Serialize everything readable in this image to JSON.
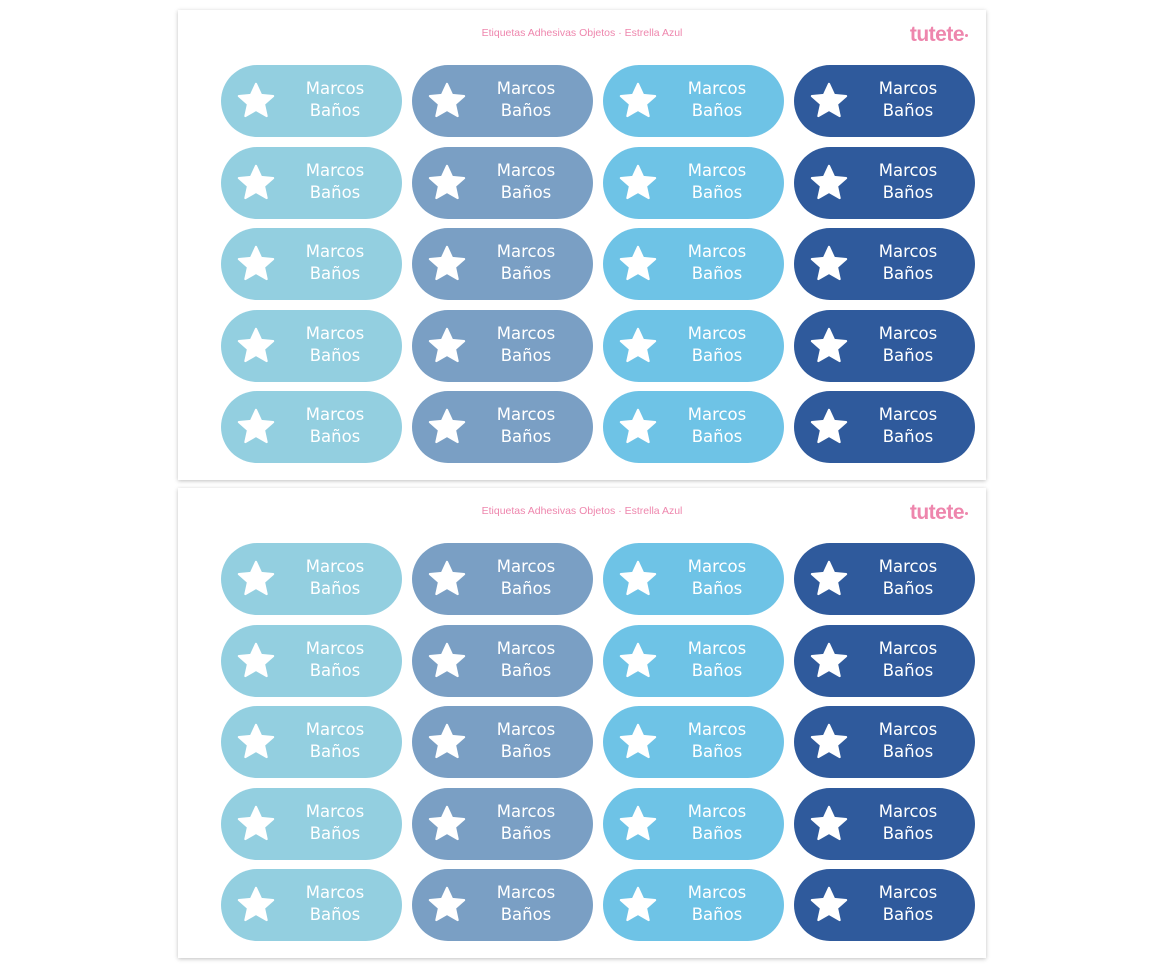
{
  "sheets": [
    {
      "title": "Etiquetas Adhesivas Objetos · Estrella Azul",
      "logo": "tutete"
    },
    {
      "title": "Etiquetas Adhesivas Objetos · Estrella Azul",
      "logo": "tutete"
    }
  ],
  "label": {
    "first_name": "Marcos",
    "last_name": "Baños",
    "icon": "star-icon"
  },
  "rows_per_sheet": 5,
  "column_colors": [
    "#93cfe0",
    "#7a9fc4",
    "#6ec3e6",
    "#2f5a9c"
  ]
}
